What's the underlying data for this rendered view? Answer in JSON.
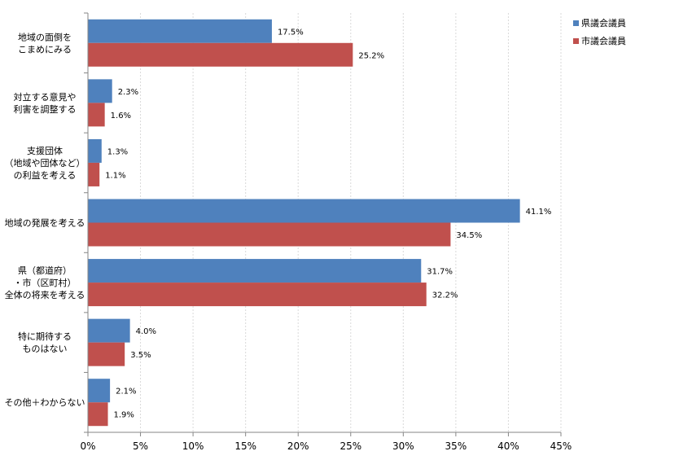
{
  "chart_data": {
    "type": "bar",
    "orientation": "horizontal",
    "categories": [
      [
        "地域の面倒を",
        "こまめにみる"
      ],
      [
        "対立する意見や",
        "利害を調整する"
      ],
      [
        "支援団体",
        "（地域や団体など）",
        "の利益を考える"
      ],
      [
        "地域の発展を考える"
      ],
      [
        "県（都道府）",
        "・市（区町村）",
        "全体の将来を考える"
      ],
      [
        "特に期待する",
        "ものはない"
      ],
      [
        "その他＋わからない"
      ]
    ],
    "series": [
      {
        "name": "県議会議員",
        "color": "#4f81bd",
        "values": [
          17.5,
          2.3,
          1.3,
          41.1,
          31.7,
          4.0,
          2.1
        ],
        "labels": [
          "17.5%",
          "2.3%",
          "1.3%",
          "41.1%",
          "31.7%",
          "4.0%",
          "2.1%"
        ]
      },
      {
        "name": "市議会議員",
        "color": "#c0504d",
        "values": [
          25.2,
          1.6,
          1.1,
          34.5,
          32.2,
          3.5,
          1.9
        ],
        "labels": [
          "25.2%",
          "1.6%",
          "1.1%",
          "34.5%",
          "32.2%",
          "3.5%",
          "1.9%"
        ]
      }
    ],
    "xlim": [
      0,
      45
    ],
    "ticks": [
      0,
      5,
      10,
      15,
      20,
      25,
      30,
      35,
      40,
      45
    ],
    "tick_labels": [
      "0%",
      "5%",
      "10%",
      "15%",
      "20%",
      "25%",
      "30%",
      "35%",
      "40%",
      "45%"
    ],
    "grid": true,
    "legend_position": "top-right"
  }
}
